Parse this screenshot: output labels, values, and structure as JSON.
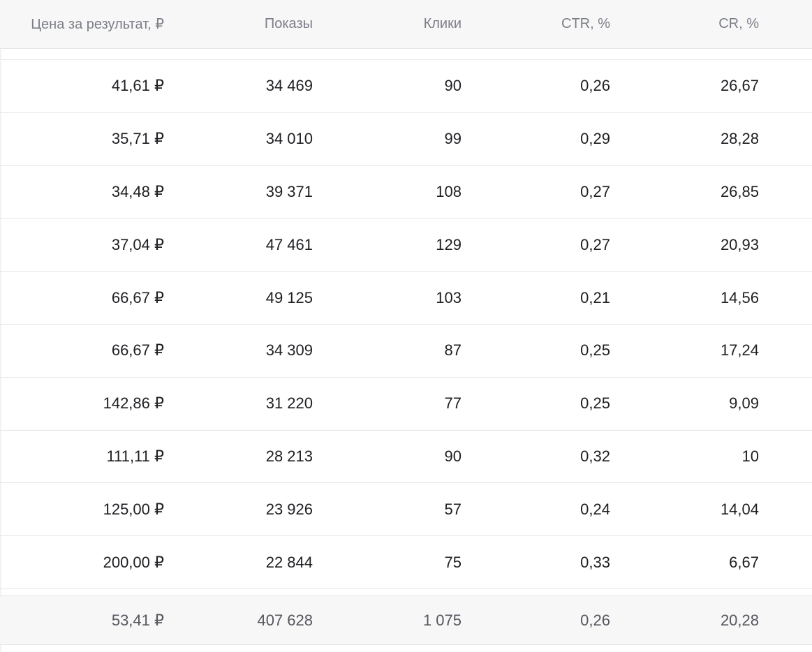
{
  "columns": {
    "cost_per_result": "Цена за результат, ₽",
    "impressions": "Показы",
    "clicks": "Клики",
    "ctr": "CTR, %",
    "cr": "CR, %"
  },
  "rows": [
    {
      "cost": "41,61 ₽",
      "impressions": "34 469",
      "clicks": "90",
      "ctr": "0,26",
      "cr": "26,67"
    },
    {
      "cost": "35,71 ₽",
      "impressions": "34 010",
      "clicks": "99",
      "ctr": "0,29",
      "cr": "28,28"
    },
    {
      "cost": "34,48 ₽",
      "impressions": "39 371",
      "clicks": "108",
      "ctr": "0,27",
      "cr": "26,85"
    },
    {
      "cost": "37,04 ₽",
      "impressions": "47 461",
      "clicks": "129",
      "ctr": "0,27",
      "cr": "20,93"
    },
    {
      "cost": "66,67 ₽",
      "impressions": "49 125",
      "clicks": "103",
      "ctr": "0,21",
      "cr": "14,56"
    },
    {
      "cost": "66,67 ₽",
      "impressions": "34 309",
      "clicks": "87",
      "ctr": "0,25",
      "cr": "17,24"
    },
    {
      "cost": "142,86 ₽",
      "impressions": "31 220",
      "clicks": "77",
      "ctr": "0,25",
      "cr": "9,09"
    },
    {
      "cost": "111,11 ₽",
      "impressions": "28 213",
      "clicks": "90",
      "ctr": "0,32",
      "cr": "10"
    },
    {
      "cost": "125,00 ₽",
      "impressions": "23 926",
      "clicks": "57",
      "ctr": "0,24",
      "cr": "14,04"
    },
    {
      "cost": "200,00 ₽",
      "impressions": "22 844",
      "clicks": "75",
      "ctr": "0,33",
      "cr": "6,67"
    }
  ],
  "totals": {
    "cost": "53,41 ₽",
    "impressions": "407 628",
    "clicks": "1 075",
    "ctr": "0,26",
    "cr": "20,28"
  }
}
